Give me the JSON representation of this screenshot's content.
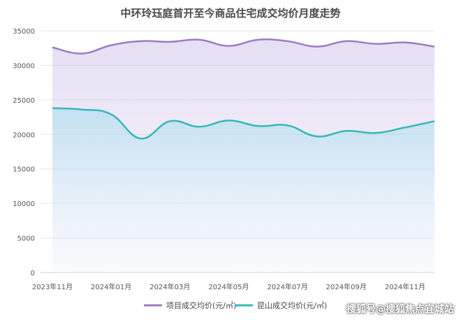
{
  "chart_data": {
    "type": "line",
    "title": "中环玲珏庭首开至今商品住宅成交均价月度走势",
    "xlabel": "",
    "ylabel": "",
    "ylim": [
      0,
      35000
    ],
    "yticks": [
      0,
      5000,
      10000,
      15000,
      20000,
      25000,
      30000,
      35000
    ],
    "x_tick_labels": [
      "2023年11月",
      "2024年01月",
      "2024年03月",
      "2024年05月",
      "2024年07月",
      "2024年09月",
      "2024年11月"
    ],
    "x": [
      "2023-11",
      "2023-12",
      "2024-01",
      "2024-02",
      "2024-03",
      "2024-04",
      "2024-05",
      "2024-06",
      "2024-07",
      "2024-08",
      "2024-09",
      "2024-10",
      "2024-11",
      "2024-12"
    ],
    "series": [
      {
        "name": "项目成交均价(元/㎡)",
        "color": "#9b7cc4",
        "values": [
          32600,
          31700,
          32900,
          33500,
          33400,
          33700,
          32800,
          33700,
          33500,
          32700,
          33500,
          33100,
          33300,
          32700
        ]
      },
      {
        "name": "昆山成交均价(元/㎡)",
        "color": "#35b9b5",
        "values": [
          23800,
          23600,
          22900,
          19400,
          21900,
          21100,
          22000,
          21200,
          21300,
          19700,
          20500,
          20200,
          21000,
          21900
        ]
      }
    ],
    "grid": true,
    "legend": "bottom"
  },
  "watermark": "搜狐号@搜狐焦点宜城站"
}
